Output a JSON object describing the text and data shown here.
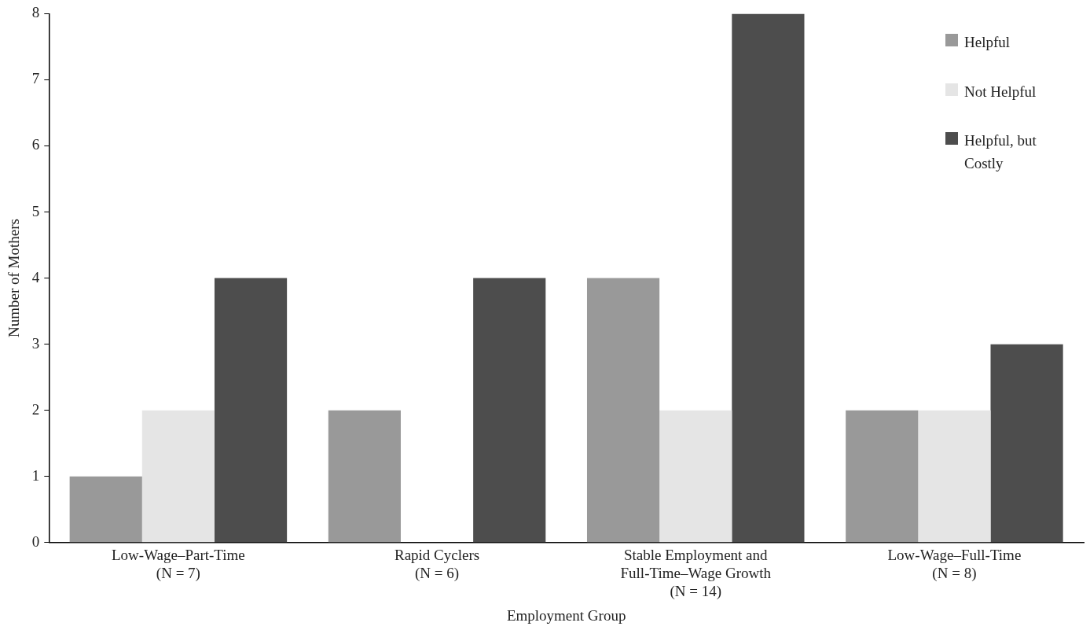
{
  "chart_data": {
    "type": "bar",
    "xlabel": "Employment Group",
    "ylabel": "Number of Mothers",
    "categories": [
      "Low-Wage–Part-Time\n(N = 7)",
      "Rapid Cyclers\n(N = 6)",
      "Stable Employment and\nFull-Time–Wage Growth\n(N = 14)",
      "Low-Wage–Full-Time\n(N = 8)"
    ],
    "series": [
      {
        "name": "Helpful",
        "color": "#999999",
        "values": [
          1,
          2,
          4,
          2
        ]
      },
      {
        "name": "Not Helpful",
        "color": "#e5e5e5",
        "values": [
          2,
          0,
          2,
          2
        ]
      },
      {
        "name": "Helpful, but Costly",
        "color": "#4d4d4d",
        "values": [
          4,
          4,
          8,
          3
        ]
      }
    ],
    "ylim": [
      0,
      8
    ],
    "yticks": [
      0,
      1,
      2,
      3,
      4,
      5,
      6,
      7,
      8
    ],
    "grid": false,
    "legend": "top right"
  }
}
